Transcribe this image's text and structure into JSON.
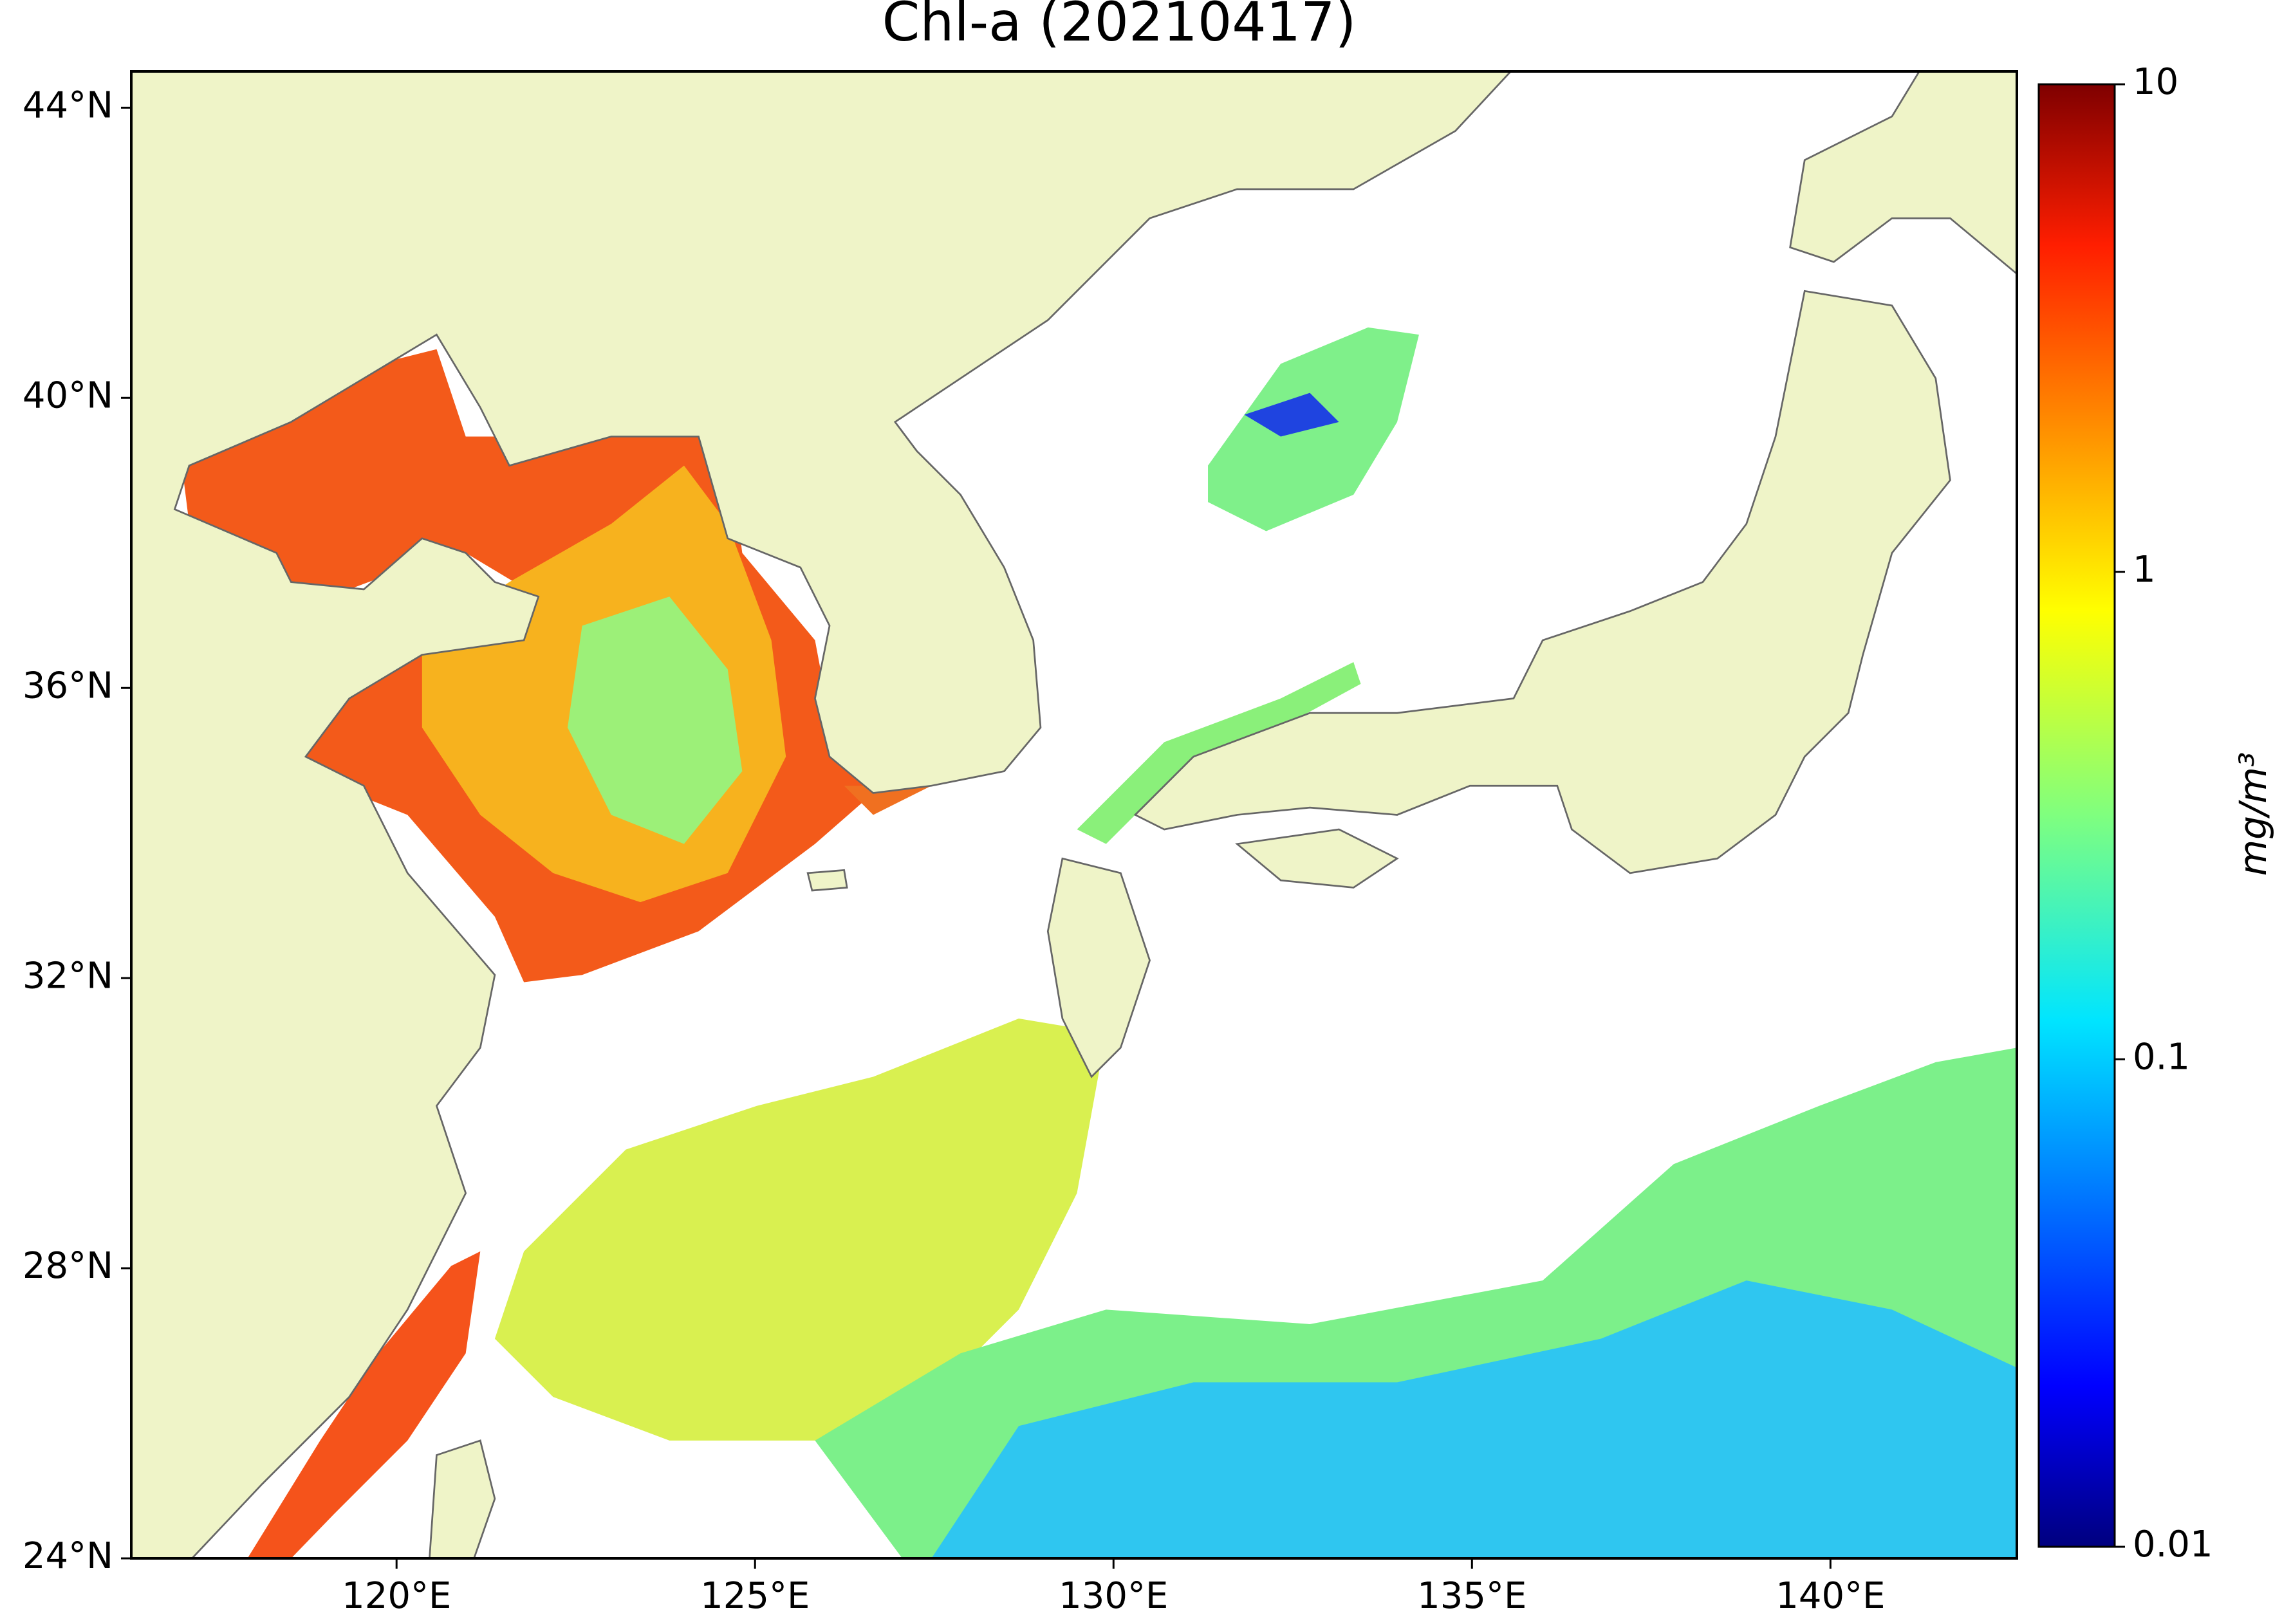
{
  "chart_data": {
    "type": "map",
    "title": "Chl-a (20210417)",
    "xlim": [
      116.3,
      142.6
    ],
    "ylim": [
      24,
      44.5
    ],
    "xticks": [
      {
        "value": 120,
        "label": "120°E"
      },
      {
        "value": 125,
        "label": "125°E"
      },
      {
        "value": 130,
        "label": "130°E"
      },
      {
        "value": 135,
        "label": "135°E"
      },
      {
        "value": 140,
        "label": "140°E"
      }
    ],
    "yticks": [
      {
        "value": 24,
        "label": "24°N"
      },
      {
        "value": 28,
        "label": "28°N"
      },
      {
        "value": 32,
        "label": "32°N"
      },
      {
        "value": 36,
        "label": "36°N"
      },
      {
        "value": 40,
        "label": "40°N"
      },
      {
        "value": 44,
        "label": "44°N"
      }
    ],
    "colorbar": {
      "label": "mg/m³",
      "log_scale": true,
      "clim": [
        0.01,
        10
      ],
      "cticks": [
        0.01,
        0.1,
        1,
        10
      ]
    }
  }
}
